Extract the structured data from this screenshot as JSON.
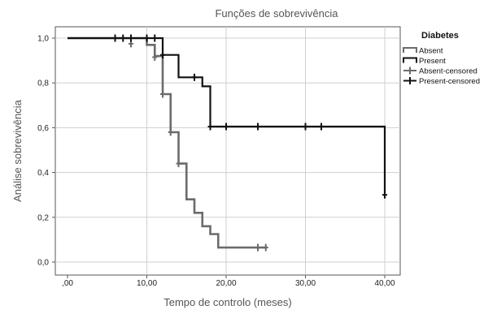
{
  "chart_data": {
    "type": "line",
    "subtype": "kaplan-meier-step",
    "title": "Funções de sobrevivência",
    "xlabel": "Tempo de controlo (meses)",
    "ylabel": "Análise sobrevivência",
    "xlim": [
      0,
      40
    ],
    "ylim": [
      0,
      1
    ],
    "x_ticks": [
      0,
      10,
      20,
      30,
      40
    ],
    "x_tick_labels": [
      ",00",
      "10,00",
      "20,00",
      "30,00",
      "40,00"
    ],
    "y_ticks": [
      0,
      0.2,
      0.4,
      0.6,
      0.8,
      1.0
    ],
    "y_tick_labels": [
      "0,0",
      "0,2",
      "0,4",
      "0,6",
      "0,8",
      "1,0"
    ],
    "grid": true,
    "legend_position": "right",
    "legend": {
      "title": "Diabetes",
      "entries": [
        {
          "label": "Absent",
          "kind": "line",
          "color": "#6b6b6b"
        },
        {
          "label": "Present",
          "kind": "line",
          "color": "#111111"
        },
        {
          "label": "Absent-censored",
          "kind": "censor",
          "color": "#6b6b6b"
        },
        {
          "label": "Present-censored",
          "kind": "censor",
          "color": "#111111"
        }
      ]
    },
    "series": [
      {
        "name": "Absent",
        "color": "#6b6b6b",
        "steps": [
          {
            "x": 0,
            "y": 1.0
          },
          {
            "x": 10,
            "y": 0.97
          },
          {
            "x": 11,
            "y": 0.92
          },
          {
            "x": 12,
            "y": 0.75
          },
          {
            "x": 13,
            "y": 0.58
          },
          {
            "x": 14,
            "y": 0.44
          },
          {
            "x": 15,
            "y": 0.28
          },
          {
            "x": 16,
            "y": 0.22
          },
          {
            "x": 17,
            "y": 0.16
          },
          {
            "x": 18,
            "y": 0.125
          },
          {
            "x": 19,
            "y": 0.065
          }
        ],
        "end_x": 25,
        "censored": [
          {
            "x": 8,
            "y": 0.975
          },
          {
            "x": 11,
            "y": 0.915
          },
          {
            "x": 12,
            "y": 0.75
          },
          {
            "x": 13,
            "y": 0.58
          },
          {
            "x": 14,
            "y": 0.44
          },
          {
            "x": 24,
            "y": 0.065
          },
          {
            "x": 25,
            "y": 0.065
          }
        ]
      },
      {
        "name": "Present",
        "color": "#111111",
        "steps": [
          {
            "x": 0,
            "y": 1.0
          },
          {
            "x": 12,
            "y": 0.925
          },
          {
            "x": 14,
            "y": 0.825
          },
          {
            "x": 17,
            "y": 0.785
          },
          {
            "x": 18,
            "y": 0.605
          },
          {
            "x": 40,
            "y": 0.3
          }
        ],
        "end_x": 40,
        "censored": [
          {
            "x": 6,
            "y": 1.0
          },
          {
            "x": 7,
            "y": 1.0
          },
          {
            "x": 8,
            "y": 1.0
          },
          {
            "x": 10,
            "y": 1.0
          },
          {
            "x": 11,
            "y": 1.0
          },
          {
            "x": 12,
            "y": 0.925
          },
          {
            "x": 16,
            "y": 0.825
          },
          {
            "x": 18,
            "y": 0.605
          },
          {
            "x": 20,
            "y": 0.605
          },
          {
            "x": 24,
            "y": 0.605
          },
          {
            "x": 30,
            "y": 0.605
          },
          {
            "x": 32,
            "y": 0.605
          },
          {
            "x": 40,
            "y": 0.3
          }
        ]
      }
    ]
  }
}
